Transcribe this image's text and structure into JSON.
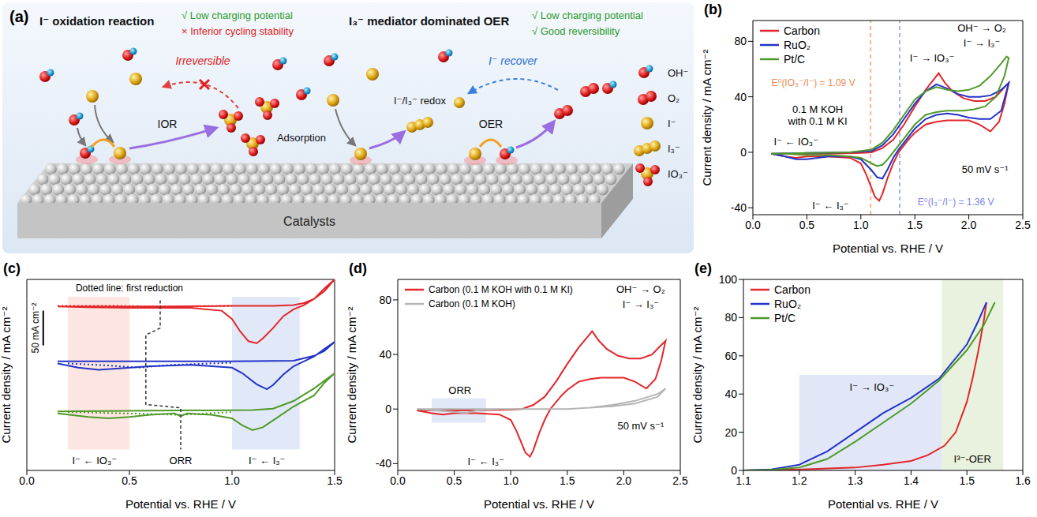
{
  "diagram": {
    "letter": "(a)",
    "left": {
      "title": "I⁻ oxidation reaction",
      "pros": [
        "√ Low charging potential"
      ],
      "cons": [
        "× Inferior cycling stability"
      ],
      "irreversible": "Irreversible",
      "reaction": "IOR"
    },
    "right": {
      "title": "I₃⁻ mediator dominated OER",
      "pros": [
        "√ Low charging potential",
        "√ Good reversibility"
      ],
      "redox": "I⁻/I₃⁻ redox",
      "adsorption": "Adsorption",
      "reaction": "OER",
      "recover": "I⁻ recover"
    },
    "surface": "Catalysts",
    "legend": [
      "OH⁻",
      "O₂",
      "I⁻",
      "I₃⁻",
      "IO₃⁻"
    ]
  },
  "chart_data": [
    {
      "panel": "(b)",
      "type": "line",
      "x_label": "Potential vs. RHE / V",
      "y_label": "Current density / mA cm⁻²",
      "xlim": [
        0,
        2.5
      ],
      "xticks": [
        {
          "value": 0,
          "label": "0.0"
        },
        0.5,
        {
          "value": 1,
          "label": "1.0"
        },
        1.5,
        {
          "value": 2,
          "label": "2.0"
        },
        2.5
      ],
      "ylim": [
        -45,
        95
      ],
      "yticks": [
        -40,
        0,
        40,
        80
      ],
      "legend": "upper left",
      "series": [
        {
          "name": "Carbon",
          "color": "#e3262b",
          "x": [
            0.17,
            0.4,
            0.7,
            1.0,
            1.1,
            1.2,
            1.3,
            1.4,
            1.5,
            1.6,
            1.67,
            1.72,
            1.78,
            1.85,
            1.95,
            2.05,
            2.15,
            2.25,
            2.32,
            2.37,
            2.33,
            2.28,
            2.2,
            2.1,
            2.0,
            1.9,
            1.8,
            1.7,
            1.6,
            1.5,
            1.45,
            1.4,
            1.35,
            1.3,
            1.25,
            1.2,
            1.17,
            1.13,
            1.1,
            1.05,
            1.0,
            0.9,
            0.7,
            0.5,
            0.4,
            0.3,
            0.17
          ],
          "values": [
            -1,
            -1,
            -1,
            -0.5,
            0,
            3,
            9,
            20,
            33,
            45,
            52,
            57,
            50,
            44,
            39,
            37,
            37,
            40,
            46,
            50,
            35,
            22,
            15,
            20,
            23,
            23,
            23,
            22,
            20,
            14,
            10,
            5,
            0,
            -8,
            -18,
            -30,
            -35,
            -32,
            -26,
            -16,
            -8,
            -4,
            -3,
            -3,
            -4,
            -3,
            -1
          ]
        },
        {
          "name": "RuO₂",
          "color": "#2433c9",
          "x": [
            0.17,
            0.5,
            0.9,
            1.1,
            1.2,
            1.3,
            1.4,
            1.5,
            1.6,
            1.7,
            1.8,
            1.9,
            2.0,
            2.1,
            2.2,
            2.3,
            2.37,
            2.3,
            2.2,
            2.1,
            2.0,
            1.9,
            1.8,
            1.7,
            1.6,
            1.5,
            1.45,
            1.4,
            1.35,
            1.3,
            1.25,
            1.2,
            1.15,
            1.1,
            1.0,
            0.9,
            0.7,
            0.5,
            0.4,
            0.3,
            0.17
          ],
          "values": [
            -1,
            -0.5,
            0,
            1,
            5,
            13,
            24,
            35,
            44,
            49,
            46,
            42,
            40,
            40,
            41,
            45,
            50,
            30,
            24,
            24,
            25,
            27,
            28,
            27,
            24,
            17,
            12,
            7,
            2,
            -4,
            -12,
            -19,
            -18,
            -13,
            -5,
            -3,
            -3,
            -5,
            -5,
            -3,
            -1
          ]
        },
        {
          "name": "Pt/C",
          "color": "#4e9a2a",
          "x": [
            0.17,
            0.5,
            0.9,
            1.1,
            1.2,
            1.3,
            1.4,
            1.5,
            1.6,
            1.7,
            1.8,
            1.9,
            2.0,
            2.1,
            2.2,
            2.3,
            2.35,
            2.37,
            2.33,
            2.25,
            2.15,
            2.05,
            1.95,
            1.8,
            1.7,
            1.6,
            1.5,
            1.4,
            1.3,
            1.25,
            1.2,
            1.15,
            1.1,
            1.0,
            0.9,
            0.7,
            0.5,
            0.3,
            0.17
          ],
          "values": [
            -1,
            -0.5,
            0,
            2,
            7,
            16,
            27,
            38,
            44,
            47,
            45,
            44,
            45,
            48,
            55,
            64,
            69,
            68,
            55,
            40,
            33,
            31,
            30,
            30,
            29,
            27,
            20,
            10,
            0,
            -5,
            -9,
            -10,
            -8,
            -4,
            -3,
            -2,
            -2,
            -1,
            -1
          ]
        }
      ],
      "reference_lines": [
        {
          "x": 1.09,
          "color": "#f5b48a"
        },
        {
          "x": 1.36,
          "color": "#a9b0ee"
        }
      ],
      "annotations": [
        {
          "text": "OH⁻ → O₂",
          "x": 2.12,
          "y": 90
        },
        {
          "text": "I⁻ → I₃⁻",
          "x": 2.12,
          "y": 79
        },
        {
          "text": "I⁻ → IO₃⁻",
          "x": 1.66,
          "y": 68
        },
        {
          "text": "E⁰(IO₃⁻/I⁻) = 1.09 V",
          "x": 0.56,
          "y": 50,
          "color": "#ee8a50"
        },
        {
          "text": [
            "0.1 M KOH",
            "with 0.1 M KI"
          ],
          "x": 0.6,
          "y": 27
        },
        {
          "text": "I⁻ ← IO₃⁻",
          "x": 0.4,
          "y": 8
        },
        {
          "text": "I⁻ ← I₃⁻",
          "x": 0.72,
          "y": -38
        },
        {
          "text": "E⁰(I₃⁻/I⁻) = 1.36 V",
          "x": 1.88,
          "y": -36,
          "color": "#7d86e8"
        },
        {
          "text": "50 mV s⁻¹",
          "x": 2.15,
          "y": -12
        }
      ]
    },
    {
      "panel": "(c)",
      "type": "line",
      "x_label": "Potential vs. RHE / V",
      "y_label": "Current density / mA cm⁻²",
      "xlim": [
        0,
        1.5
      ],
      "xticks": [
        {
          "value": 0,
          "label": "0.0"
        },
        0.5,
        {
          "value": 1,
          "label": "1.0"
        },
        1.5
      ],
      "ylim": [
        0,
        275
      ],
      "tick_labels": "x",
      "series": [
        {
          "color": "#e3262b",
          "x": [
            0.15,
            0.4,
            0.7,
            1.0,
            1.2,
            1.3,
            1.35,
            1.4,
            1.45,
            1.5,
            1.45,
            1.4,
            1.35,
            1.3,
            1.25,
            1.2,
            1.15,
            1.12,
            1.08,
            1.04,
            1.0,
            0.95,
            0.8,
            0.5,
            0.3,
            0.15
          ],
          "values": [
            236,
            236,
            236,
            237,
            237,
            238,
            241,
            247,
            258,
            275,
            262,
            247,
            238,
            232,
            222,
            205,
            190,
            183,
            186,
            200,
            218,
            230,
            234,
            234,
            235,
            236
          ]
        },
        {
          "color": "#e3262b",
          "line_style": "dotted",
          "x": [
            0.15,
            0.4,
            0.7,
            1.0
          ],
          "values": [
            237,
            237,
            236,
            237
          ]
        },
        {
          "color": "#2433c9",
          "x": [
            0.15,
            0.5,
            1.0,
            1.3,
            1.4,
            1.45,
            1.5,
            1.45,
            1.4,
            1.35,
            1.3,
            1.25,
            1.2,
            1.17,
            1.12,
            1.05,
            1.0,
            0.8,
            0.6,
            0.45,
            0.35,
            0.25,
            0.15
          ],
          "values": [
            157,
            157,
            157,
            158,
            165,
            172,
            185,
            175,
            164,
            157,
            150,
            138,
            123,
            117,
            124,
            140,
            148,
            152,
            150,
            147,
            145,
            148,
            154
          ]
        },
        {
          "color": "#2433c9",
          "line_style": "dotted",
          "x": [
            0.2,
            0.4,
            0.55,
            0.7,
            1.0
          ],
          "values": [
            154,
            151,
            148,
            152,
            155
          ]
        },
        {
          "color": "#4e9a2a",
          "x": [
            0.15,
            0.6,
            1.1,
            1.2,
            1.3,
            1.4,
            1.5,
            1.45,
            1.4,
            1.3,
            1.2,
            1.15,
            1.1,
            1.05,
            1.0,
            0.9,
            0.78,
            0.75,
            0.72,
            0.6,
            0.5,
            0.4,
            0.3,
            0.15
          ],
          "values": [
            85,
            86,
            87,
            89,
            100,
            118,
            140,
            126,
            108,
            92,
            72,
            62,
            58,
            65,
            75,
            80,
            82,
            78,
            82,
            80,
            77,
            75,
            77,
            82
          ]
        },
        {
          "color": "#4e9a2a",
          "line_style": "dotted",
          "x": [
            0.2,
            0.5,
            0.75,
            1.0
          ],
          "values": [
            84,
            82,
            80,
            84
          ]
        }
      ],
      "regions": [
        {
          "x": [
            0.2,
            0.5
          ],
          "y": [
            30,
            250
          ],
          "color": "#fbd0c8"
        },
        {
          "x": [
            1.0,
            1.33
          ],
          "y": [
            30,
            250
          ],
          "color": "#c9d6f0"
        }
      ],
      "orr_marker": {
        "x": [
          0.65,
          0.65,
          0.58,
          0.58,
          0.75,
          0.75
        ],
        "y": [
          245,
          205,
          195,
          95,
          90,
          30
        ]
      },
      "scale_bar": {
        "x": 0.08,
        "y": [
          180,
          230
        ],
        "label": "50 mA cm⁻²"
      },
      "annotations": [
        {
          "text": "Dotted line: first reduction",
          "x": 0.5,
          "y": 262
        },
        {
          "text": "I⁻ ← IO₃⁻",
          "x": 0.33,
          "y": 15
        },
        {
          "text": "ORR",
          "x": 0.75,
          "y": 15
        },
        {
          "text": "I⁻ ← I₃⁻",
          "x": 1.17,
          "y": 15
        }
      ]
    },
    {
      "panel": "(d)",
      "type": "line",
      "x_label": "Potential vs. RHE / V",
      "y_label": "Current density / mA cm⁻²",
      "xlim": [
        0,
        2.5
      ],
      "xticks": [
        {
          "value": 0,
          "label": "0.0"
        },
        0.5,
        {
          "value": 1,
          "label": "1.0"
        },
        1.5,
        {
          "value": 2,
          "label": "2.0"
        },
        2.5
      ],
      "ylim": [
        -45,
        95
      ],
      "yticks": [
        -40,
        0,
        40,
        80
      ],
      "legend": "upper left",
      "series": [
        {
          "name": "Carbon (0.1 M KOH with 0.1 M KI)",
          "color": "#e3262b",
          "x": [
            0.17,
            0.4,
            0.7,
            1.0,
            1.1,
            1.2,
            1.3,
            1.4,
            1.5,
            1.6,
            1.67,
            1.72,
            1.78,
            1.85,
            1.95,
            2.05,
            2.15,
            2.25,
            2.32,
            2.37,
            2.33,
            2.28,
            2.2,
            2.1,
            2.0,
            1.9,
            1.8,
            1.7,
            1.6,
            1.5,
            1.45,
            1.4,
            1.35,
            1.3,
            1.25,
            1.2,
            1.17,
            1.13,
            1.1,
            1.05,
            1.0,
            0.9,
            0.7,
            0.5,
            0.4,
            0.3,
            0.17
          ],
          "values": [
            -1,
            -1,
            -1,
            -0.5,
            0,
            3,
            9,
            20,
            33,
            45,
            52,
            57,
            50,
            44,
            39,
            37,
            37,
            40,
            46,
            50,
            35,
            22,
            15,
            20,
            23,
            23,
            23,
            22,
            20,
            14,
            10,
            5,
            0,
            -8,
            -18,
            -30,
            -35,
            -32,
            -26,
            -16,
            -8,
            -4,
            -3,
            -3,
            -4,
            -3,
            -1
          ]
        },
        {
          "name": "Carbon (0.1 M KOH)",
          "color": "#b5b5b5",
          "x": [
            0.17,
            0.5,
            0.6,
            0.7,
            0.9,
            1.2,
            1.5,
            1.7,
            1.9,
            2.1,
            2.3,
            2.37,
            2.3,
            2.1,
            1.9,
            1.7,
            1.5,
            1.2,
            0.9,
            0.7,
            0.6,
            0.5,
            0.17
          ],
          "values": [
            0,
            0,
            0,
            0,
            0,
            0,
            0,
            1,
            3,
            6,
            11,
            15,
            9,
            4,
            2,
            1,
            0,
            0,
            0,
            -1,
            -3,
            -2,
            0
          ]
        }
      ],
      "regions": [
        {
          "x": [
            0.3,
            0.78
          ],
          "y": [
            -10,
            8
          ],
          "color": "#c9d6f0"
        }
      ],
      "annotations": [
        {
          "text": "OH⁻ → O₂",
          "x": 2.15,
          "y": 88
        },
        {
          "text": "I⁻ → I₃⁻",
          "x": 2.15,
          "y": 77
        },
        {
          "text": "ORR",
          "x": 0.55,
          "y": 14
        },
        {
          "text": "I⁻ ← I₃⁻",
          "x": 0.78,
          "y": -38
        },
        {
          "text": "50 mV s⁻¹",
          "x": 2.15,
          "y": -12
        }
      ]
    },
    {
      "panel": "(e)",
      "type": "line",
      "x_label": "Potential vs. RHE / V",
      "y_label": "Current density / mA cm⁻²",
      "xlim": [
        1.1,
        1.6
      ],
      "xticks": [
        1.1,
        1.2,
        1.3,
        1.4,
        1.5,
        1.6
      ],
      "ylim": [
        0,
        100
      ],
      "yticks": [
        0,
        20,
        40,
        60,
        80,
        100
      ],
      "legend": "upper left",
      "series": [
        {
          "name": "Carbon",
          "color": "#e3262b",
          "x": [
            1.1,
            1.2,
            1.3,
            1.35,
            1.4,
            1.43,
            1.46,
            1.48,
            1.5,
            1.51,
            1.52,
            1.53,
            1.535
          ],
          "values": [
            0,
            0.5,
            1.5,
            3,
            5,
            8,
            13,
            20,
            36,
            48,
            62,
            78,
            88
          ]
        },
        {
          "name": "RuO₂",
          "color": "#2433c9",
          "x": [
            1.1,
            1.15,
            1.2,
            1.25,
            1.3,
            1.35,
            1.4,
            1.45,
            1.5,
            1.52,
            1.535
          ],
          "values": [
            0,
            0.5,
            3,
            10,
            20,
            30,
            38,
            48,
            66,
            78,
            88
          ]
        },
        {
          "name": "Pt/C",
          "color": "#4e9a2a",
          "x": [
            1.1,
            1.15,
            1.2,
            1.25,
            1.3,
            1.35,
            1.4,
            1.45,
            1.5,
            1.53,
            1.55
          ],
          "values": [
            0,
            0.3,
            1.5,
            6,
            15,
            25,
            35,
            47,
            63,
            76,
            88
          ]
        }
      ],
      "regions": [
        {
          "x": [
            1.2,
            1.455
          ],
          "y": [
            0,
            50
          ],
          "color": "#c9d3f0"
        },
        {
          "x": [
            1.455,
            1.565
          ],
          "y": [
            0,
            100
          ],
          "color": "#d6e8c2"
        }
      ],
      "annotations": [
        {
          "text": "I⁻ → IO₃⁻",
          "x": 1.33,
          "y": 44
        },
        {
          "text": "I³⁻-OER",
          "x": 1.51,
          "y": 6
        }
      ]
    }
  ]
}
